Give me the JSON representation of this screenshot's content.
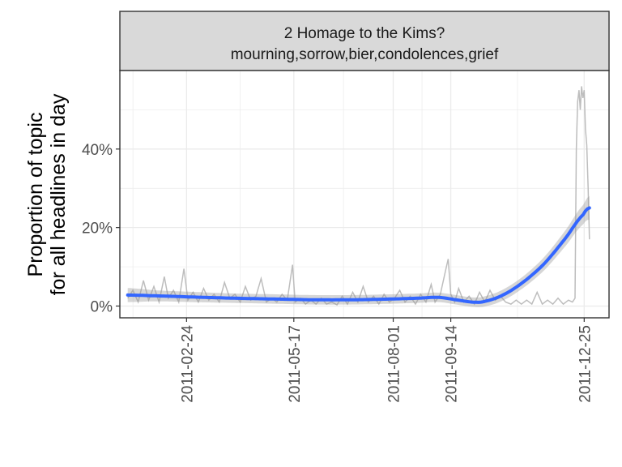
{
  "chart_data": {
    "type": "line",
    "strip": {
      "title": "2 Homage to the Kims?",
      "subtitle": "mourning,sorrow,bier,condolences,grief"
    },
    "ylabel_line1": "Proportion of topic",
    "ylabel_line2": "for all headlines in day",
    "xlabel": "",
    "x_ticks": [
      "2011-02-24",
      "2011-05-17",
      "2011-08-01",
      "2011-09-14",
      "2011-12-25"
    ],
    "y_ticks": [
      {
        "value": 0,
        "label": "0%"
      },
      {
        "value": 20,
        "label": "20%"
      },
      {
        "value": 40,
        "label": "40%"
      }
    ],
    "xlim": [
      "2011-01-04",
      "2012-01-13"
    ],
    "ylim": [
      -3,
      60
    ],
    "grid": true,
    "colors": {
      "raw_line": "#bdbdbd",
      "smooth_line": "#3366ff",
      "ribbon": "#999999",
      "strip_fill": "#d9d9d9",
      "grid": "#ebebeb",
      "border": "#333333"
    },
    "series": [
      {
        "role": "daily proportion (raw)",
        "points": [
          [
            "2011-01-10",
            2.0
          ],
          [
            "2011-01-14",
            4.0
          ],
          [
            "2011-01-18",
            1.0
          ],
          [
            "2011-01-22",
            6.5
          ],
          [
            "2011-01-26",
            1.5
          ],
          [
            "2011-01-30",
            5.0
          ],
          [
            "2011-02-03",
            1.0
          ],
          [
            "2011-02-07",
            7.5
          ],
          [
            "2011-02-10",
            2.0
          ],
          [
            "2011-02-14",
            4.0
          ],
          [
            "2011-02-18",
            1.0
          ],
          [
            "2011-02-22",
            9.5
          ],
          [
            "2011-02-25",
            1.5
          ],
          [
            "2011-03-01",
            3.5
          ],
          [
            "2011-03-05",
            1.0
          ],
          [
            "2011-03-09",
            4.5
          ],
          [
            "2011-03-13",
            1.5
          ],
          [
            "2011-03-17",
            3.0
          ],
          [
            "2011-03-21",
            1.0
          ],
          [
            "2011-03-25",
            6.0
          ],
          [
            "2011-03-29",
            2.0
          ],
          [
            "2011-04-02",
            3.0
          ],
          [
            "2011-04-06",
            1.0
          ],
          [
            "2011-04-10",
            5.0
          ],
          [
            "2011-04-14",
            1.5
          ],
          [
            "2011-04-18",
            2.5
          ],
          [
            "2011-04-22",
            7.0
          ],
          [
            "2011-04-26",
            1.0
          ],
          [
            "2011-04-30",
            2.0
          ],
          [
            "2011-05-04",
            1.0
          ],
          [
            "2011-05-08",
            3.0
          ],
          [
            "2011-05-12",
            1.5
          ],
          [
            "2011-05-16",
            10.5
          ],
          [
            "2011-05-18",
            1.0
          ],
          [
            "2011-05-22",
            2.0
          ],
          [
            "2011-05-26",
            0.5
          ],
          [
            "2011-05-30",
            1.5
          ],
          [
            "2011-06-03",
            0.5
          ],
          [
            "2011-06-07",
            2.0
          ],
          [
            "2011-06-11",
            0.5
          ],
          [
            "2011-06-15",
            1.0
          ],
          [
            "2011-06-19",
            0.3
          ],
          [
            "2011-06-23",
            2.5
          ],
          [
            "2011-06-27",
            0.5
          ],
          [
            "2011-07-01",
            3.5
          ],
          [
            "2011-07-05",
            1.0
          ],
          [
            "2011-07-09",
            5.0
          ],
          [
            "2011-07-13",
            1.0
          ],
          [
            "2011-07-17",
            2.5
          ],
          [
            "2011-07-21",
            0.5
          ],
          [
            "2011-07-25",
            3.0
          ],
          [
            "2011-07-29",
            1.0
          ],
          [
            "2011-08-02",
            2.0
          ],
          [
            "2011-08-06",
            4.0
          ],
          [
            "2011-08-10",
            1.0
          ],
          [
            "2011-08-14",
            2.5
          ],
          [
            "2011-08-18",
            0.5
          ],
          [
            "2011-08-22",
            3.0
          ],
          [
            "2011-08-26",
            1.0
          ],
          [
            "2011-08-30",
            5.5
          ],
          [
            "2011-09-02",
            1.0
          ],
          [
            "2011-09-06",
            3.0
          ],
          [
            "2011-09-10",
            9.0
          ],
          [
            "2011-09-12",
            12.0
          ],
          [
            "2011-09-14",
            3.0
          ],
          [
            "2011-09-17",
            1.0
          ],
          [
            "2011-09-20",
            4.5
          ],
          [
            "2011-09-24",
            1.0
          ],
          [
            "2011-09-28",
            2.5
          ],
          [
            "2011-10-02",
            0.5
          ],
          [
            "2011-10-06",
            3.5
          ],
          [
            "2011-10-10",
            1.0
          ],
          [
            "2011-10-14",
            4.0
          ],
          [
            "2011-10-18",
            1.5
          ],
          [
            "2011-10-22",
            2.5
          ],
          [
            "2011-10-26",
            1.0
          ],
          [
            "2011-10-30",
            0.5
          ],
          [
            "2011-11-03",
            1.5
          ],
          [
            "2011-11-07",
            0.5
          ],
          [
            "2011-11-11",
            1.5
          ],
          [
            "2011-11-15",
            0.5
          ],
          [
            "2011-11-19",
            3.5
          ],
          [
            "2011-11-23",
            0.5
          ],
          [
            "2011-11-27",
            1.5
          ],
          [
            "2011-12-01",
            0.5
          ],
          [
            "2011-12-05",
            2.0
          ],
          [
            "2011-12-09",
            0.5
          ],
          [
            "2011-12-13",
            1.5
          ],
          [
            "2011-12-16",
            1.0
          ],
          [
            "2011-12-18",
            2.0
          ],
          [
            "2011-12-19",
            40.0
          ],
          [
            "2011-12-20",
            52.0
          ],
          [
            "2011-12-21",
            55.0
          ],
          [
            "2011-12-22",
            50.0
          ],
          [
            "2011-12-23",
            56.0
          ],
          [
            "2011-12-24",
            53.0
          ],
          [
            "2011-12-25",
            55.0
          ],
          [
            "2011-12-26",
            45.0
          ],
          [
            "2011-12-27",
            41.0
          ],
          [
            "2011-12-28",
            30.0
          ],
          [
            "2011-12-29",
            17.0
          ]
        ]
      },
      {
        "role": "smoothed trend",
        "points": [
          [
            "2011-01-10",
            2.8
          ],
          [
            "2011-02-01",
            2.6
          ],
          [
            "2011-03-01",
            2.3
          ],
          [
            "2011-04-01",
            2.0
          ],
          [
            "2011-05-01",
            1.8
          ],
          [
            "2011-06-01",
            1.6
          ],
          [
            "2011-07-01",
            1.6
          ],
          [
            "2011-08-01",
            1.8
          ],
          [
            "2011-08-20",
            2.0
          ],
          [
            "2011-09-05",
            2.2
          ],
          [
            "2011-09-20",
            1.5
          ],
          [
            "2011-10-01",
            1.0
          ],
          [
            "2011-10-10",
            1.2
          ],
          [
            "2011-10-25",
            3.0
          ],
          [
            "2011-11-10",
            6.5
          ],
          [
            "2011-11-25",
            11.0
          ],
          [
            "2011-12-10",
            17.0
          ],
          [
            "2011-12-25",
            23.5
          ],
          [
            "2011-12-29",
            25.0
          ]
        ],
        "ribbon_halfwidth": [
          1.8,
          1.4,
          1.3,
          1.2,
          1.2,
          1.2,
          1.2,
          1.2,
          1.2,
          1.2,
          1.2,
          1.2,
          1.3,
          1.4,
          1.5,
          1.7,
          2.0,
          2.5,
          3.0
        ]
      }
    ]
  }
}
